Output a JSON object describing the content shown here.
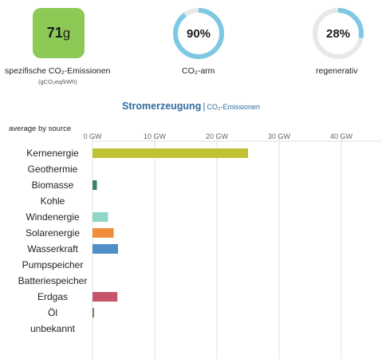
{
  "kpis": {
    "emissions": {
      "value": "71",
      "unit": "g",
      "label": "spezifische CO₂-Emissionen",
      "sublabel": "(gCO₂eq/kWh)",
      "color": "#8dc955"
    },
    "low_carbon": {
      "value": "90%",
      "fraction": 0.9,
      "label": "CO₂-arm"
    },
    "renewable": {
      "value": "28%",
      "fraction": 0.28,
      "label": "regenerativ"
    },
    "ring_colors": {
      "fill": "#7ec8e3",
      "track": "#e8e8e8"
    }
  },
  "title": {
    "main": "Stromerzeugung",
    "separator": "|",
    "alt": "CO₂-Emissionen"
  },
  "average_label": "average by source",
  "chart_data": {
    "type": "bar",
    "orientation": "horizontal",
    "unit": "GW",
    "xlim": [
      0,
      46
    ],
    "ticks": [
      0,
      10,
      20,
      30,
      40
    ],
    "tick_labels": [
      "0 GW",
      "10 GW",
      "20 GW",
      "30 GW",
      "40 GW"
    ],
    "grid": true,
    "categories": [
      "Kernenergie",
      "Geothermie",
      "Biomasse",
      "Kohle",
      "Windenergie",
      "Solarenergie",
      "Wasserkraft",
      "Pumpspeicher",
      "Batteriespeicher",
      "Erdgas",
      "Öl",
      "unbekannt"
    ],
    "values": [
      25,
      0,
      0.7,
      0,
      2.5,
      3.4,
      4.1,
      0,
      0,
      4.0,
      0.25,
      0
    ],
    "colors": [
      "#bfc234",
      "#888888",
      "#3b7f6d",
      "#555555",
      "#8fd6c8",
      "#f08d3b",
      "#4e8fc8",
      "#6aa0d0",
      "#9a9a9a",
      "#c8546c",
      "#8a7a5a",
      "#aaaaaa"
    ]
  }
}
